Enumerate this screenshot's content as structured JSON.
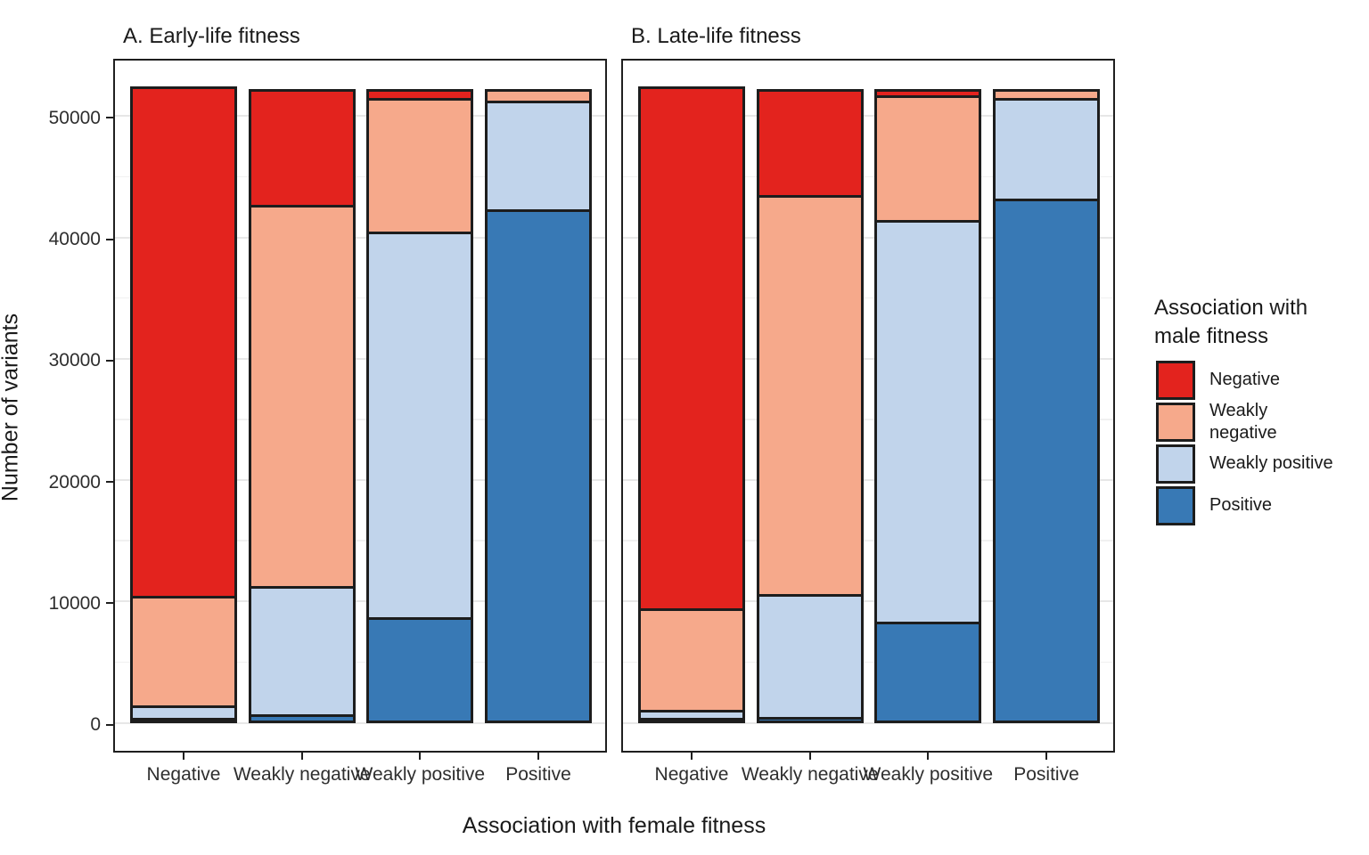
{
  "chart_data": {
    "type": "bar",
    "stacked": true,
    "title": "",
    "xlabel": "Association with female fitness",
    "ylabel": "Number of variants",
    "categories": [
      "Negative",
      "Weakly negative",
      "Weakly positive",
      "Positive"
    ],
    "yticks": [
      0,
      10000,
      20000,
      30000,
      40000,
      50000
    ],
    "ylim": [
      0,
      54900
    ],
    "grid": "on",
    "legend_position": "right",
    "legend": {
      "title": "Association with male fitness",
      "items": [
        {
          "label": "Negative",
          "color": "#E3231E"
        },
        {
          "label": "Weakly negative",
          "color": "#F6A98B"
        },
        {
          "label": "Weakly positive",
          "color": "#C1D4EB"
        },
        {
          "label": "Positive",
          "color": "#3879B5"
        }
      ]
    },
    "stack_order_bottom_to_top": [
      "Positive",
      "Weakly positive",
      "Weakly negative",
      "Negative"
    ],
    "bar_total_per_category": 52200,
    "panels": [
      {
        "title": "A. Early-life fitness",
        "series": [
          {
            "name": "Negative",
            "color": "#E3231E",
            "values": [
              42000,
              9500,
              700,
              0
            ]
          },
          {
            "name": "Weakly negative",
            "color": "#F6A98B",
            "values": [
              9000,
              31400,
              11000,
              900
            ]
          },
          {
            "name": "Weakly positive",
            "color": "#C1D4EB",
            "values": [
              1000,
              10600,
              31800,
              9000
            ]
          },
          {
            "name": "Positive",
            "color": "#3879B5",
            "values": [
              200,
              700,
              8700,
              42300
            ]
          }
        ]
      },
      {
        "title": "B. Late-life fitness",
        "series": [
          {
            "name": "Negative",
            "color": "#E3231E",
            "values": [
              43000,
              8700,
              500,
              0
            ]
          },
          {
            "name": "Weakly negative",
            "color": "#F6A98B",
            "values": [
              8350,
              32900,
              10300,
              700
            ]
          },
          {
            "name": "Weakly positive",
            "color": "#C1D4EB",
            "values": [
              650,
              10100,
              33100,
              8300
            ]
          },
          {
            "name": "Positive",
            "color": "#3879B5",
            "values": [
              200,
              500,
              8300,
              43200
            ]
          }
        ]
      }
    ]
  }
}
